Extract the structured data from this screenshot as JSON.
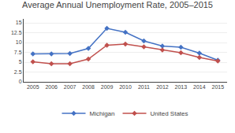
{
  "chart_data": {
    "type": "line",
    "title": "Average Annual Unemployment Rate, 2005–2015",
    "x": [
      2005,
      2006,
      2007,
      2008,
      2009,
      2010,
      2011,
      2012,
      2013,
      2014,
      2015
    ],
    "xlim": [
      2004.5,
      2015.5
    ],
    "xticks": [
      2005,
      2006,
      2007,
      2008,
      2009,
      2010,
      2011,
      2012,
      2013,
      2014,
      2015
    ],
    "series": [
      {
        "name": "Michigan",
        "color": "#4472C4",
        "values": [
          7.1,
          7.1,
          7.2,
          8.5,
          13.6,
          12.6,
          10.4,
          9.1,
          8.8,
          7.3,
          5.5
        ]
      },
      {
        "name": "United States",
        "color": "#C0504D",
        "values": [
          5.1,
          4.6,
          4.6,
          5.8,
          9.3,
          9.6,
          8.9,
          8.1,
          7.4,
          6.2,
          5.3
        ]
      }
    ],
    "ylim": [
      0,
      16
    ],
    "yticks": [
      0,
      2.5,
      5,
      7.5,
      10,
      12.5,
      15
    ],
    "grid": true,
    "legend": "bottom",
    "marker": "diamond",
    "line_style": "solid"
  }
}
